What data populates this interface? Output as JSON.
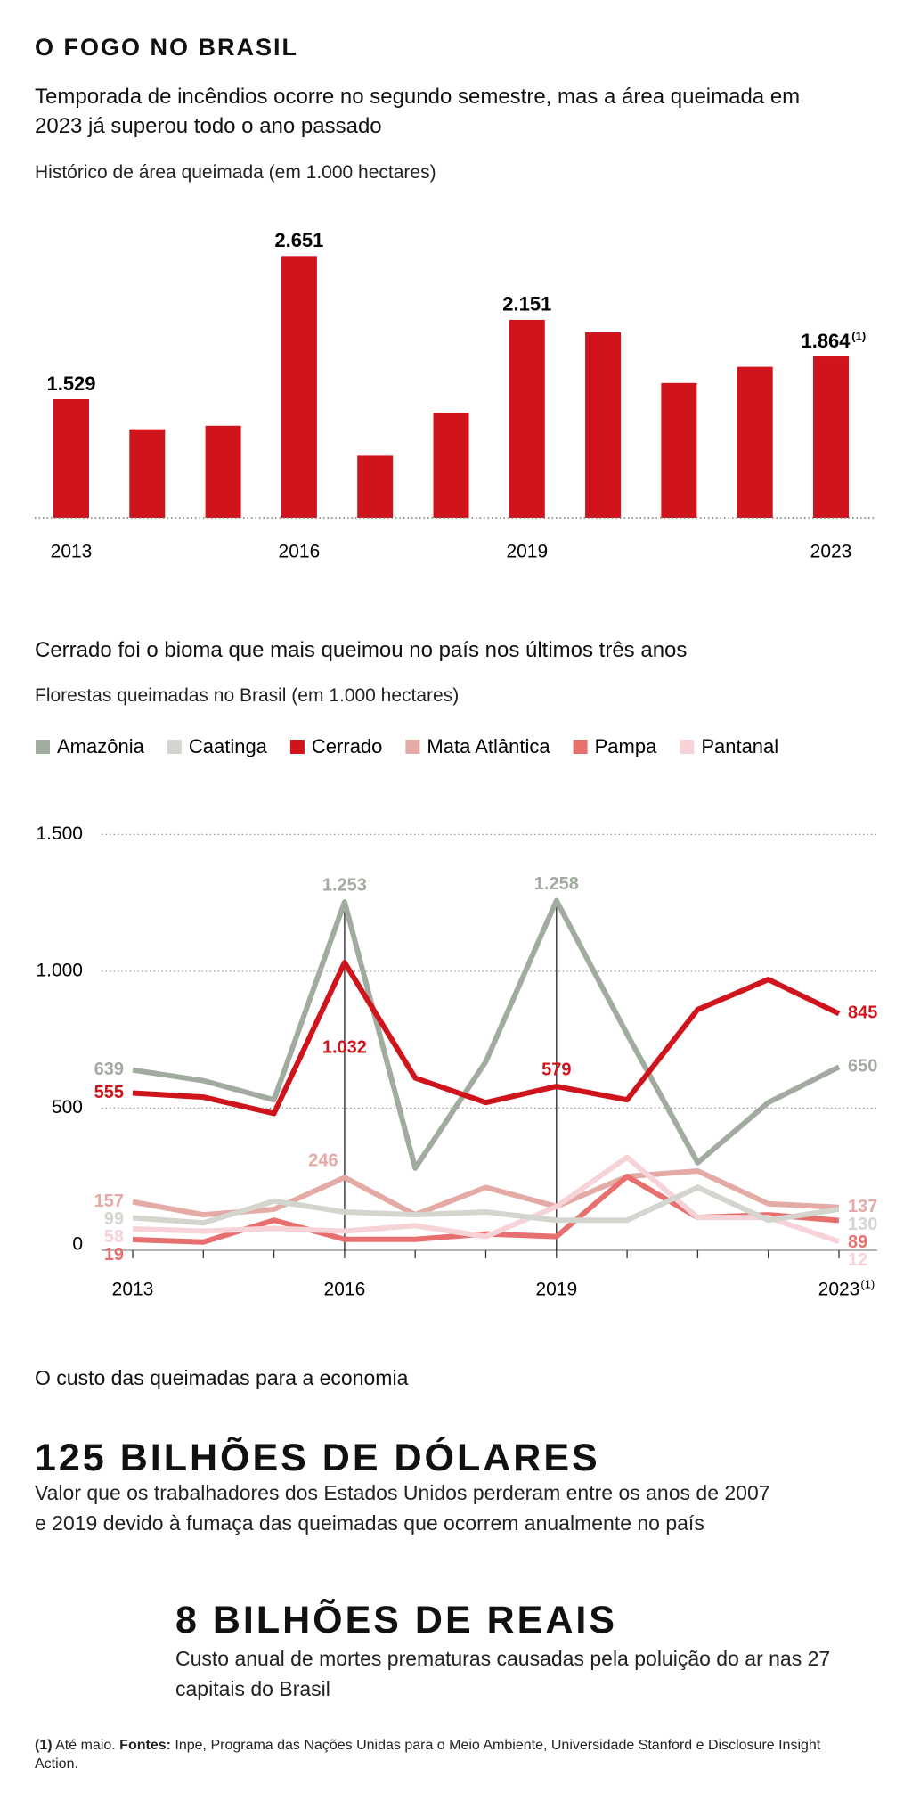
{
  "header": {
    "title": "O FOGO NO BRASIL",
    "subtitle": "Temporada de incêndios ocorre no segundo semestre, mas a área queimada em 2023 já superou todo o ano passado"
  },
  "chart_data": [
    {
      "type": "bar",
      "subtitle": "Histórico de área queimada (em 1.000 hectares)",
      "categories": [
        "2013",
        null,
        null,
        "2016",
        null,
        null,
        "2019",
        null,
        null,
        null,
        "2023"
      ],
      "values": [
        1529,
        1294,
        1321,
        2651,
        1086,
        1421,
        2151,
        2054,
        1656,
        1783,
        1864
      ],
      "value_labels": [
        "1.529",
        null,
        null,
        "2.651",
        null,
        null,
        "2.151",
        null,
        null,
        null,
        "1.864"
      ],
      "label_note": "(1)",
      "color": "#d0141c",
      "ylim": [
        600,
        2800
      ]
    },
    {
      "type": "line",
      "title": "Cerrado foi o bioma que mais queimou no país nos últimos três anos",
      "subtitle": "Florestas queimadas no Brasil (em 1.000 hectares)",
      "categories": [
        "2013",
        null,
        null,
        "2016",
        null,
        null,
        "2019",
        null,
        null,
        null,
        "2023"
      ],
      "category_note": "(1)",
      "ylim": [
        -20,
        1550
      ],
      "yticks": [
        0,
        500,
        {
          "value": 1000,
          "label": "1.000"
        },
        {
          "value": 1500,
          "label": "1.500"
        }
      ],
      "grid": true,
      "series": [
        {
          "name": "Amazônia",
          "color": "#a2ab9f",
          "values": [
            639,
            600,
            530,
            1253,
            280,
            670,
            1258,
            770,
            300,
            520,
            650
          ],
          "value_labels": [
            "639",
            null,
            null,
            "1.253",
            null,
            null,
            "1.258",
            null,
            null,
            null,
            "650"
          ]
        },
        {
          "name": "Caatinga",
          "color": "#d4d5cf",
          "values": [
            99,
            80,
            160,
            120,
            110,
            120,
            90,
            90,
            210,
            90,
            130
          ],
          "value_labels": [
            "99",
            null,
            null,
            null,
            null,
            null,
            null,
            null,
            null,
            null,
            "130"
          ]
        },
        {
          "name": "Cerrado",
          "color": "#d0141c",
          "values": [
            555,
            540,
            480,
            1032,
            610,
            520,
            579,
            530,
            860,
            970,
            845
          ],
          "value_labels": [
            "555",
            null,
            null,
            "1.032",
            null,
            null,
            "579",
            null,
            null,
            null,
            "845"
          ]
        },
        {
          "name": "Mata Atlântica",
          "color": "#e3aaa6",
          "values": [
            157,
            110,
            130,
            246,
            110,
            210,
            140,
            250,
            270,
            150,
            137
          ],
          "value_labels": [
            "157",
            null,
            null,
            "246",
            null,
            null,
            null,
            null,
            null,
            null,
            "137"
          ]
        },
        {
          "name": "Pampa",
          "color": "#e7706f",
          "values": [
            19,
            10,
            90,
            20,
            20,
            40,
            30,
            250,
            100,
            110,
            89
          ],
          "value_labels": [
            "19",
            null,
            null,
            null,
            null,
            null,
            null,
            null,
            null,
            null,
            "89"
          ]
        },
        {
          "name": "Pantanal",
          "color": "#f6d3d6",
          "values": [
            58,
            50,
            60,
            50,
            70,
            30,
            140,
            320,
            100,
            100,
            12
          ],
          "value_labels": [
            "58",
            null,
            null,
            null,
            null,
            null,
            null,
            null,
            null,
            null,
            "12"
          ]
        }
      ]
    }
  ],
  "economy": {
    "heading": "O custo das queimadas para a economia",
    "items": [
      {
        "headline": "125 BILHÕES DE DÓLARES",
        "text": "Valor que os trabalhadores dos Estados Unidos perderam entre os anos de 2007 e 2019 devido à fumaça das queimadas que ocorrem anualmente no país"
      },
      {
        "headline": "8 BILHÕES DE REAIS",
        "text": "Custo anual de mortes prematuras causadas pela poluição do ar nas 27 capitais do Brasil"
      }
    ]
  },
  "footnote": {
    "marker": "(1)",
    "note": "Até maio.",
    "sources_label": "Fontes:",
    "sources": "Inpe, Programa das Nações Unidas para o Meio Ambiente, Universidade Stanford e Disclosure Insight Action."
  }
}
